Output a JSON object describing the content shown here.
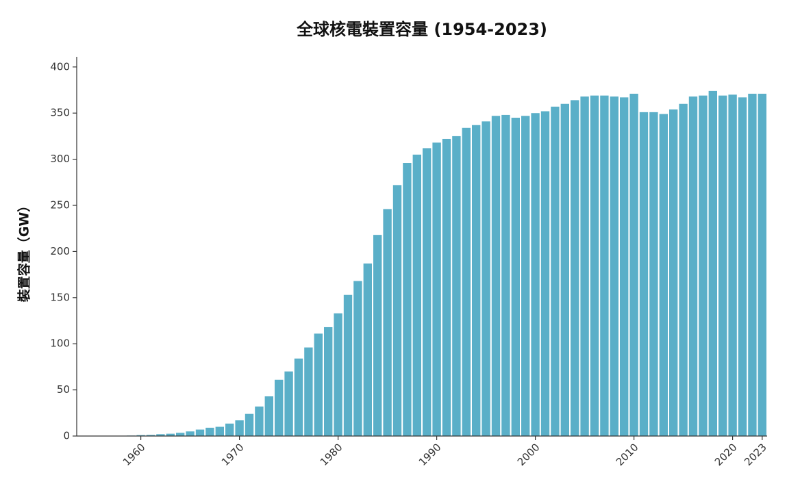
{
  "chart_data": {
    "type": "bar",
    "title": "全球核電裝置容量 (1954-2023)",
    "y_label": "裝置容量（GW）",
    "x": [
      1954,
      1955,
      1956,
      1957,
      1958,
      1959,
      1960,
      1961,
      1962,
      1963,
      1964,
      1965,
      1966,
      1967,
      1968,
      1969,
      1970,
      1971,
      1972,
      1973,
      1974,
      1975,
      1976,
      1977,
      1978,
      1979,
      1980,
      1981,
      1982,
      1983,
      1984,
      1985,
      1986,
      1987,
      1988,
      1989,
      1990,
      1991,
      1992,
      1993,
      1994,
      1995,
      1996,
      1997,
      1998,
      1999,
      2000,
      2001,
      2002,
      2003,
      2004,
      2005,
      2006,
      2007,
      2008,
      2009,
      2010,
      2011,
      2012,
      2013,
      2014,
      2015,
      2016,
      2017,
      2018,
      2019,
      2020,
      2021,
      2022,
      2023
    ],
    "values": [
      0,
      0,
      0.05,
      0.1,
      0.2,
      0.5,
      1,
      1.2,
      2,
      2.5,
      3.5,
      5,
      7,
      9,
      10,
      13.5,
      17,
      24,
      32,
      43,
      61,
      70,
      84,
      96,
      111,
      118,
      133,
      153,
      168,
      187,
      218,
      246,
      272,
      296,
      305,
      312,
      318,
      322,
      325,
      334,
      337,
      341,
      347,
      348,
      345,
      347,
      350,
      352,
      357,
      360,
      364,
      368,
      369,
      369,
      368,
      367,
      371,
      351,
      351,
      349,
      354,
      360,
      368,
      369,
      374,
      369,
      370,
      367,
      371,
      371
    ],
    "color": "#5aafc8",
    "xlim": [
      1953.5,
      2023.5
    ],
    "xticks": [
      1960,
      1970,
      1980,
      1990,
      2000,
      2010,
      2020,
      2023
    ],
    "ylim": [
      0,
      411
    ],
    "yticks": [
      0,
      50,
      100,
      150,
      200,
      250,
      300,
      350,
      400
    ]
  }
}
